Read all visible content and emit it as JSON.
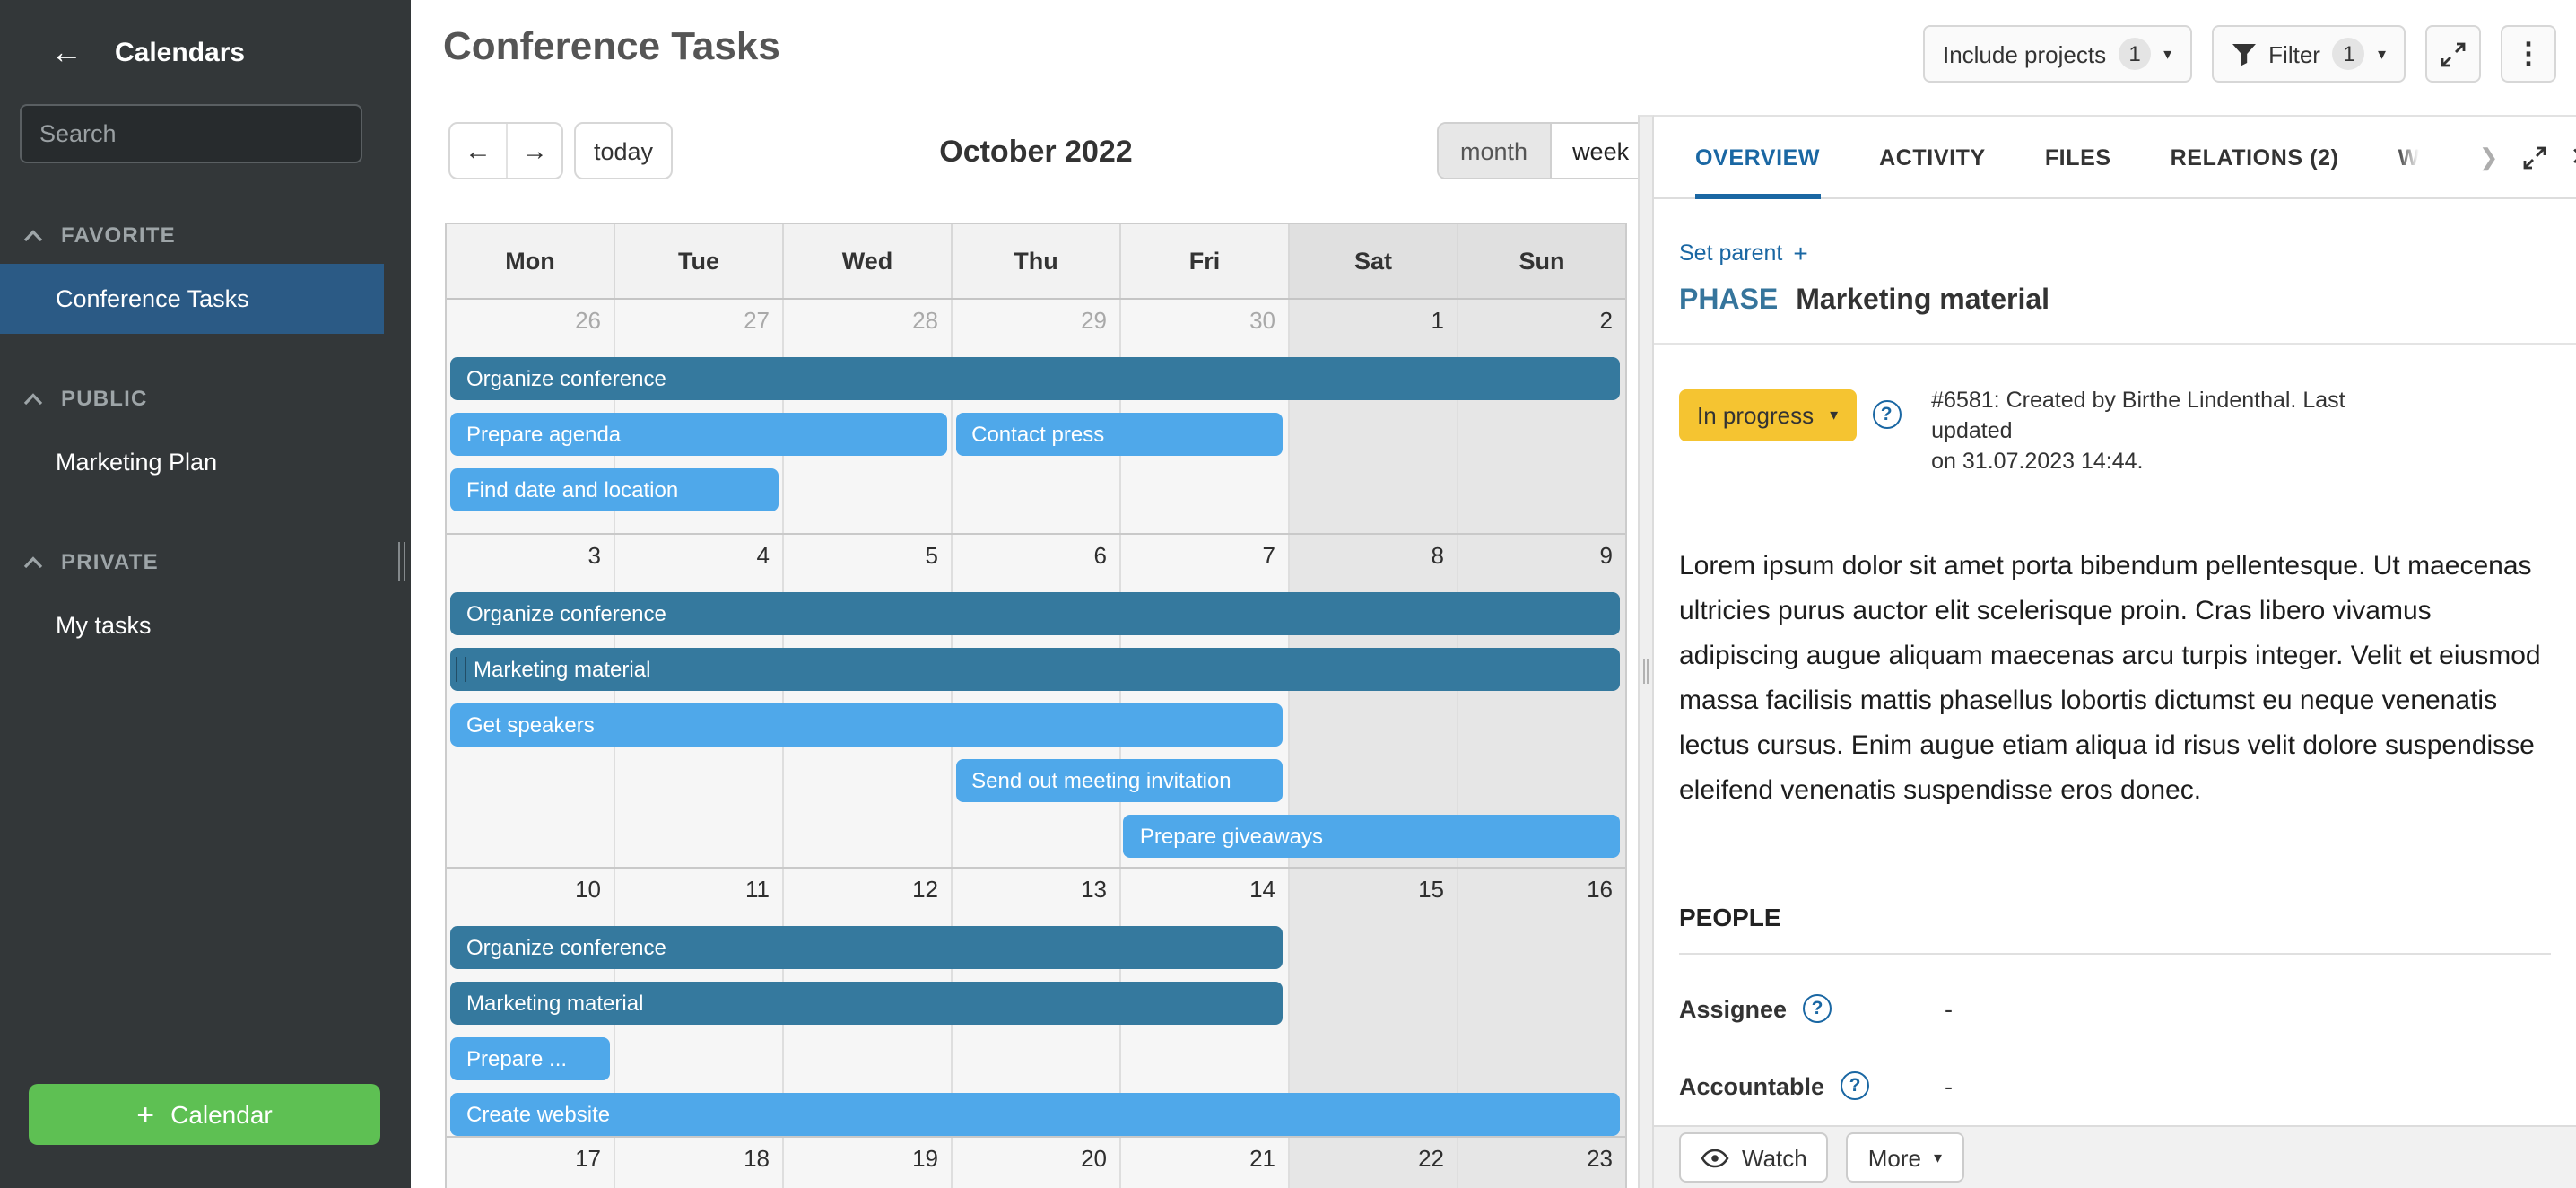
{
  "sidebar": {
    "title": "Calendars",
    "back_icon": "←",
    "search_placeholder": "Search",
    "sections": [
      {
        "label": "FAVORITE",
        "items": [
          {
            "label": "Conference Tasks",
            "selected": true
          }
        ]
      },
      {
        "label": "PUBLIC",
        "items": [
          {
            "label": "Marketing Plan"
          }
        ]
      },
      {
        "label": "PRIVATE",
        "items": [
          {
            "label": "My tasks"
          }
        ]
      }
    ],
    "add_button_label": "Calendar"
  },
  "header": {
    "title": "Conference Tasks",
    "include_projects_label": "Include projects",
    "include_projects_count": "1",
    "filter_label": "Filter",
    "filter_count": "1"
  },
  "toolbar": {
    "prev_icon": "←",
    "next_icon": "→",
    "today_label": "today",
    "month_title": "October 2022",
    "views": {
      "month": "month",
      "week": "week"
    }
  },
  "calendar": {
    "weekday_headers": [
      "Mon",
      "Tue",
      "Wed",
      "Thu",
      "Fri",
      "Sat",
      "Sun"
    ],
    "weeks": [
      {
        "height": 131,
        "days": [
          {
            "num": "26",
            "muted": true
          },
          {
            "num": "27",
            "muted": true
          },
          {
            "num": "28",
            "muted": true
          },
          {
            "num": "29",
            "muted": true
          },
          {
            "num": "30",
            "muted": true
          },
          {
            "num": "1",
            "weekend": true
          },
          {
            "num": "2",
            "weekend": true
          }
        ],
        "bars": [
          {
            "label": "Organize conference",
            "start": 0,
            "span": 7,
            "lane": 0,
            "variant": "dark"
          },
          {
            "label": "Prepare agenda",
            "start": 0,
            "span": 3,
            "lane": 1,
            "variant": "light"
          },
          {
            "label": "Contact press",
            "start": 3,
            "span": 2,
            "lane": 1,
            "variant": "light"
          },
          {
            "label": "Find date and location",
            "start": 0,
            "span": 2,
            "lane": 2,
            "variant": "light"
          }
        ]
      },
      {
        "height": 186,
        "days": [
          {
            "num": "3"
          },
          {
            "num": "4"
          },
          {
            "num": "5"
          },
          {
            "num": "6"
          },
          {
            "num": "7"
          },
          {
            "num": "8",
            "weekend": true
          },
          {
            "num": "9",
            "weekend": true
          }
        ],
        "bars": [
          {
            "label": "Organize conference",
            "start": 0,
            "span": 7,
            "lane": 0,
            "variant": "dark"
          },
          {
            "label": "Marketing material",
            "start": 0,
            "span": 7,
            "lane": 1,
            "variant": "dark",
            "selected": true
          },
          {
            "label": "Get speakers",
            "start": 0,
            "span": 5,
            "lane": 2,
            "variant": "light"
          },
          {
            "label": "Send out meeting invitation",
            "start": 3,
            "span": 2,
            "lane": 3,
            "variant": "light"
          },
          {
            "label": "Prepare giveaways",
            "start": 4,
            "span": 3,
            "lane": 4,
            "variant": "light"
          }
        ]
      },
      {
        "height": 150,
        "days": [
          {
            "num": "10"
          },
          {
            "num": "11"
          },
          {
            "num": "12"
          },
          {
            "num": "13"
          },
          {
            "num": "14"
          },
          {
            "num": "15",
            "weekend": true
          },
          {
            "num": "16",
            "weekend": true
          }
        ],
        "bars": [
          {
            "label": "Organize conference",
            "start": 0,
            "span": 5,
            "lane": 0,
            "variant": "dark"
          },
          {
            "label": "Marketing material",
            "start": 0,
            "span": 5,
            "lane": 1,
            "variant": "dark"
          },
          {
            "label": "Prepare ...",
            "start": 0,
            "span": 1,
            "lane": 2,
            "variant": "light"
          },
          {
            "label": "Create website",
            "start": 0,
            "span": 7,
            "lane": 3,
            "variant": "light"
          }
        ]
      },
      {
        "height": 29,
        "days": [
          {
            "num": "17"
          },
          {
            "num": "18"
          },
          {
            "num": "19"
          },
          {
            "num": "20"
          },
          {
            "num": "21"
          },
          {
            "num": "22",
            "weekend": true
          },
          {
            "num": "23",
            "weekend": true
          }
        ],
        "bars": []
      }
    ]
  },
  "panel": {
    "tabs": [
      {
        "label": "OVERVIEW",
        "state": "active"
      },
      {
        "label": "ACTIVITY"
      },
      {
        "label": "FILES"
      },
      {
        "label": "RELATIONS (2)"
      },
      {
        "label": "W",
        "state": "faded"
      }
    ],
    "chevron_right_icon": "❯",
    "close_icon": "✕",
    "set_parent_label": "Set parent",
    "type_label": "PHASE",
    "title": "Marketing material",
    "status_label": "In progress",
    "help_icon": "?",
    "meta_line1": "#6581: Created by Birthe Lindenthal. Last updated",
    "meta_line2": "on 31.07.2023 14:44.",
    "description": "Lorem ipsum dolor sit amet porta bibendum pellentesque. Ut maecenas ultricies purus auctor elit scelerisque proin. Cras libero vivamus adipiscing augue aliquam maecenas arcu turpis integer. Velit et eiusmod massa facilisis mattis phasellus lobortis dictumst eu neque venenatis lectus cursus. Enim augue etiam aliqua id risus velit dolore suspendisse eleifend venenatis suspendisse eros donec.",
    "people_heading": "PEOPLE",
    "fields": [
      {
        "label": "Assignee",
        "value": "-"
      },
      {
        "label": "Accountable",
        "value": "-"
      }
    ],
    "watch_label": "Watch",
    "more_label": "More"
  },
  "icons_text": {
    "caret_down": "▾",
    "kebab": "⋮",
    "plus": "+"
  },
  "colors": {
    "sidebar_bg": "#333739",
    "sidebar_selected": "#2B5A85",
    "green_button": "#5EC053",
    "accent_blue": "#1A67A3",
    "phase_type": "#36759C",
    "status_yellow": "#F5C431",
    "bar_dark": "#35799E",
    "bar_light": "#4FA8EA",
    "weekend_cell": "#E6E6E6",
    "weekday_cell": "#F6F6F6"
  }
}
